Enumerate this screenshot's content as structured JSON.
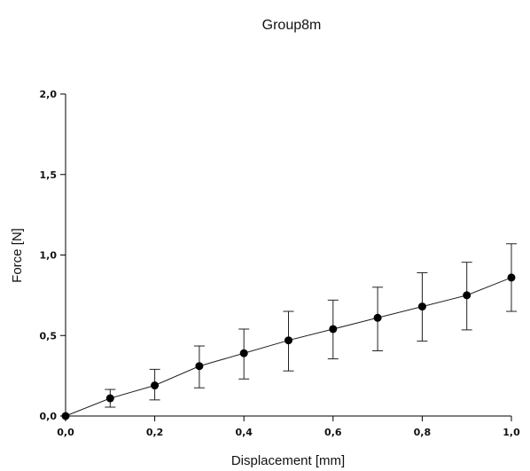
{
  "chart_data": {
    "type": "line",
    "title": "Group8m",
    "xlabel": "Displacement [mm]",
    "ylabel": "Force [N]",
    "xlim": [
      0,
      1.0
    ],
    "ylim": [
      0,
      2.0
    ],
    "x_ticks": [
      "0,0",
      "0,2",
      "0,4",
      "0,6",
      "0,8",
      "1,0"
    ],
    "y_ticks": [
      "0,0",
      "0,5",
      "1,0",
      "1,5",
      "2,0"
    ],
    "grid": false,
    "x": [
      0.0,
      0.1,
      0.2,
      0.3,
      0.4,
      0.5,
      0.6,
      0.7,
      0.8,
      0.9,
      1.0
    ],
    "y": [
      0.0,
      0.11,
      0.19,
      0.31,
      0.39,
      0.47,
      0.54,
      0.61,
      0.68,
      0.75,
      0.86
    ],
    "error_low": [
      0.0,
      0.055,
      0.1,
      0.175,
      0.23,
      0.28,
      0.355,
      0.405,
      0.465,
      0.535,
      0.65
    ],
    "error_high": [
      0.0,
      0.165,
      0.29,
      0.435,
      0.54,
      0.65,
      0.72,
      0.8,
      0.89,
      0.955,
      1.07
    ],
    "colors": {
      "line": "#222222",
      "marker": "#000000",
      "axis": "#000000"
    }
  }
}
